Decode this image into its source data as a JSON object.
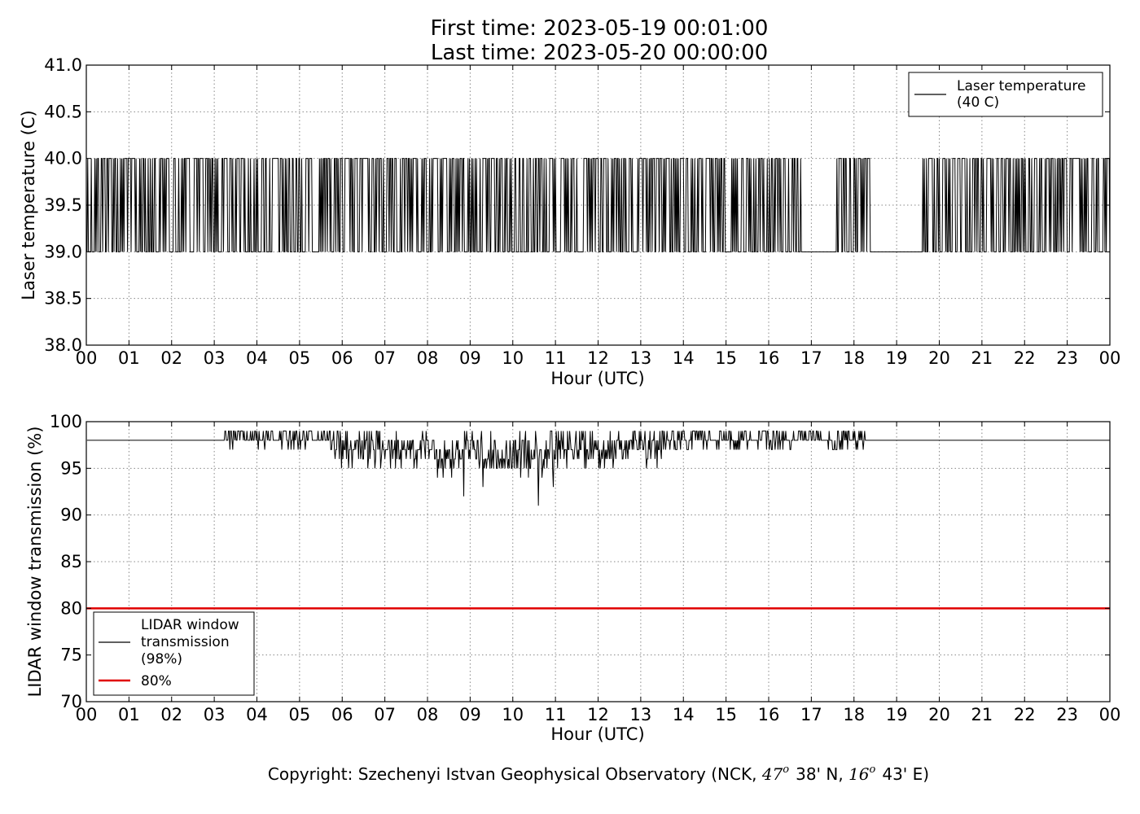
{
  "title": {
    "line1": "First time: 2023-05-19 00:01:00",
    "line2": "Last time: 2023-05-20 00:00:00"
  },
  "copyright": {
    "prefix": "Copyright: Szechenyi Istvan Geophysical Observatory (NCK, ",
    "lat_deg": "47",
    "lat_rest": "38' N, ",
    "lon_deg": "16",
    "lon_rest": "43' E)",
    "deg_mark": "o"
  },
  "colors": {
    "series": "#000000",
    "threshold": "#e00000",
    "grid": "#888888"
  },
  "chart_data": [
    {
      "type": "line",
      "xlabel": "Hour (UTC)",
      "ylabel": "Laser temperature (C)",
      "ylim": [
        38.0,
        41.0
      ],
      "xlim": [
        0,
        24
      ],
      "yticks": [
        "38.0",
        "38.5",
        "39.0",
        "39.5",
        "40.0",
        "40.5",
        "41.0"
      ],
      "xticks": [
        "00",
        "01",
        "02",
        "03",
        "04",
        "05",
        "06",
        "07",
        "08",
        "09",
        "10",
        "11",
        "12",
        "13",
        "14",
        "15",
        "16",
        "17",
        "18",
        "19",
        "20",
        "21",
        "22",
        "23",
        "00"
      ],
      "grid": true,
      "legend_position": "upper-right",
      "legend": [
        "Laser temperature",
        "(40 C)"
      ],
      "series": [
        {
          "values_description": "values alternate between 39.0 and 40.0 from 00:01 to 24:00; gaps of steady 39.0 around 16.8-17.5 and 18.4-19.3",
          "levels": [
            39.0,
            40.0
          ],
          "steady_low_intervals": [
            [
              16.8,
              17.55
            ],
            [
              18.4,
              19.3
            ],
            [
              19.35,
              19.6
            ]
          ]
        }
      ]
    },
    {
      "type": "line",
      "xlabel": "Hour (UTC)",
      "ylabel": "LIDAR window transmission (%)",
      "ylim": [
        70,
        100
      ],
      "xlim": [
        0,
        24
      ],
      "yticks": [
        "70",
        "75",
        "80",
        "85",
        "90",
        "95",
        "100"
      ],
      "xticks": [
        "00",
        "01",
        "02",
        "03",
        "04",
        "05",
        "06",
        "07",
        "08",
        "09",
        "10",
        "11",
        "12",
        "13",
        "14",
        "15",
        "16",
        "17",
        "18",
        "19",
        "20",
        "21",
        "22",
        "23",
        "00"
      ],
      "grid": true,
      "legend_position": "lower-left",
      "legend": [
        {
          "lines": [
            "LIDAR window",
            "transmission",
            "(98%)"
          ],
          "color": "#000000"
        },
        {
          "lines": [
            "80%"
          ],
          "color": "#e00000"
        }
      ],
      "series": [
        {
          "baseline": 98,
          "variable_interval": [
            3.25,
            18.25
          ],
          "notable_minima": [
            [
              8.85,
              92
            ],
            [
              10.6,
              91
            ],
            [
              10.95,
              93
            ],
            [
              9.3,
              93
            ]
          ]
        },
        {
          "constant": 80
        }
      ]
    }
  ]
}
